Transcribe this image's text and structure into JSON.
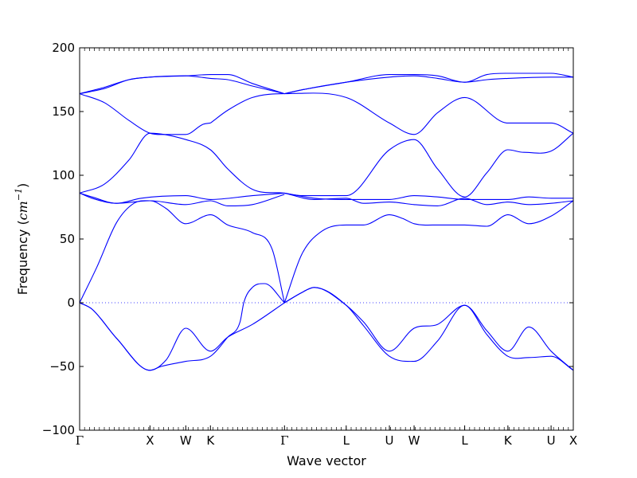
{
  "chart_data": {
    "type": "line",
    "title": "",
    "xlabel": "Wave vector",
    "ylabel": "Frequency (cm⁻¹)",
    "ylabel_parts": {
      "prefix": "Frequency (",
      "unit": "cm",
      "exp": "−1",
      "suffix": ")"
    },
    "ylim": [
      -100,
      200
    ],
    "yticks": [
      -100,
      -50,
      0,
      50,
      100,
      150,
      200
    ],
    "ytick_labels": [
      "−100",
      "−50",
      "0",
      "50",
      "100",
      "150",
      "200"
    ],
    "grid": false,
    "zero_line": "dotted",
    "line_color": "#0000ff",
    "xlim": [
      0,
      20
    ],
    "high_symmetry_points": [
      {
        "label": "Γ",
        "x": 0.0
      },
      {
        "label": "X",
        "x": 2.85
      },
      {
        "label": "W",
        "x": 4.3
      },
      {
        "label": "K",
        "x": 5.3
      },
      {
        "label": "Γ",
        "x": 8.3
      },
      {
        "label": "L",
        "x": 10.8
      },
      {
        "label": "U",
        "x": 12.55
      },
      {
        "label": "W",
        "x": 13.55
      },
      {
        "label": "L",
        "x": 15.6
      },
      {
        "label": "K",
        "x": 17.35
      },
      {
        "label": "U",
        "x": 19.1
      },
      {
        "label": "X",
        "x": 20.0
      }
    ],
    "minor_tick_step": 0.2,
    "series": [
      {
        "points": [
          [
            0,
            164
          ],
          [
            1,
            157
          ],
          [
            2,
            143
          ],
          [
            2.85,
            133
          ],
          [
            3.5,
            132
          ],
          [
            4.3,
            132
          ],
          [
            5,
            140
          ],
          [
            5.3,
            141
          ]
        ]
      },
      {
        "points": [
          [
            0,
            86
          ],
          [
            1,
            93
          ],
          [
            2,
            112
          ],
          [
            2.85,
            133
          ],
          [
            4.3,
            128
          ],
          [
            5.3,
            120
          ],
          [
            6,
            105
          ],
          [
            7,
            89
          ],
          [
            8.3,
            86
          ]
        ]
      },
      {
        "points": [
          [
            0,
            164
          ],
          [
            1,
            168
          ],
          [
            2,
            175
          ],
          [
            2.85,
            177
          ],
          [
            4.3,
            178
          ],
          [
            5.3,
            179
          ],
          [
            6,
            179
          ],
          [
            7,
            172
          ],
          [
            8.3,
            164
          ]
        ]
      },
      {
        "points": [
          [
            0,
            164
          ],
          [
            1,
            169
          ],
          [
            2,
            175
          ],
          [
            2.85,
            177
          ],
          [
            4.3,
            178
          ],
          [
            5.3,
            176
          ],
          [
            6,
            175
          ],
          [
            7,
            170
          ],
          [
            8.3,
            164
          ]
        ]
      },
      {
        "points": [
          [
            5.3,
            141
          ],
          [
            6,
            151
          ],
          [
            7,
            161
          ],
          [
            8.3,
            164
          ],
          [
            10.8,
            161
          ],
          [
            12.55,
            141
          ],
          [
            13.55,
            132
          ],
          [
            14.5,
            149
          ],
          [
            15.6,
            161
          ],
          [
            17.35,
            141
          ],
          [
            19.1,
            141
          ],
          [
            20,
            133
          ]
        ]
      },
      {
        "points": [
          [
            8.3,
            86
          ],
          [
            9,
            84
          ],
          [
            10.8,
            84
          ],
          [
            12.55,
            120
          ],
          [
            13.55,
            128
          ],
          [
            14.5,
            105
          ],
          [
            15.6,
            83
          ],
          [
            16.5,
            102
          ],
          [
            17.35,
            120
          ],
          [
            18,
            118
          ],
          [
            19.1,
            119
          ],
          [
            20,
            133
          ]
        ]
      },
      {
        "points": [
          [
            8.3,
            164
          ],
          [
            9,
            167
          ],
          [
            10.8,
            173
          ],
          [
            12.55,
            179
          ],
          [
            13.55,
            179
          ],
          [
            14.5,
            178
          ],
          [
            15.6,
            173
          ],
          [
            16.5,
            179
          ],
          [
            17.35,
            180
          ],
          [
            19.1,
            180
          ],
          [
            20,
            177
          ]
        ]
      },
      {
        "points": [
          [
            8.3,
            164
          ],
          [
            9,
            167
          ],
          [
            10.8,
            173
          ],
          [
            12.55,
            177
          ],
          [
            13.55,
            178
          ],
          [
            14.5,
            176
          ],
          [
            15.6,
            173
          ],
          [
            16.5,
            175
          ],
          [
            17.35,
            176
          ],
          [
            19.1,
            177
          ],
          [
            20,
            177
          ]
        ]
      },
      {
        "points": [
          [
            0,
            86
          ],
          [
            0.5,
            83
          ],
          [
            1.5,
            78
          ],
          [
            2.85,
            80
          ],
          [
            4.3,
            77
          ],
          [
            5.3,
            80
          ],
          [
            6,
            76
          ],
          [
            7,
            77
          ],
          [
            8.3,
            85
          ]
        ]
      },
      {
        "points": [
          [
            0,
            86
          ],
          [
            0.5,
            82
          ],
          [
            1.5,
            78
          ],
          [
            2.5,
            82
          ],
          [
            4.3,
            84
          ],
          [
            5.3,
            81
          ],
          [
            7,
            84
          ],
          [
            8.3,
            86
          ]
        ]
      },
      {
        "points": [
          [
            8.3,
            86
          ],
          [
            9.5,
            82
          ],
          [
            10.8,
            81
          ],
          [
            12.55,
            81
          ],
          [
            13.55,
            84
          ],
          [
            14.5,
            83
          ],
          [
            15.6,
            81
          ],
          [
            17.35,
            81
          ],
          [
            18.2,
            83
          ],
          [
            19.1,
            82
          ],
          [
            20,
            82
          ]
        ]
      },
      {
        "points": [
          [
            8.3,
            86
          ],
          [
            9.5,
            81
          ],
          [
            10.8,
            82
          ],
          [
            11.5,
            78
          ],
          [
            12.55,
            79
          ],
          [
            13.55,
            77
          ],
          [
            14.5,
            76
          ],
          [
            15.6,
            82
          ],
          [
            16.5,
            77
          ],
          [
            17.35,
            79
          ],
          [
            18.2,
            77
          ],
          [
            19.1,
            78
          ],
          [
            20,
            80
          ]
        ]
      },
      {
        "points": [
          [
            0,
            0
          ],
          [
            0.7,
            28
          ],
          [
            1.5,
            63
          ],
          [
            2.2,
            78
          ],
          [
            2.85,
            80
          ],
          [
            3.5,
            74
          ],
          [
            4.3,
            62
          ],
          [
            5.3,
            69
          ],
          [
            6,
            61
          ],
          [
            7,
            55
          ],
          [
            7.8,
            42
          ],
          [
            8.3,
            0
          ]
        ]
      },
      {
        "points": [
          [
            8.3,
            0
          ],
          [
            9,
            38
          ],
          [
            9.8,
            56
          ],
          [
            10.8,
            61
          ],
          [
            11.5,
            61
          ],
          [
            12.55,
            69
          ],
          [
            13.1,
            66
          ],
          [
            13.55,
            62
          ],
          [
            14.5,
            61
          ],
          [
            15.6,
            61
          ],
          [
            16.5,
            60
          ],
          [
            17.35,
            69
          ],
          [
            18.2,
            62
          ],
          [
            19.1,
            68
          ],
          [
            20,
            80
          ]
        ]
      },
      {
        "points": [
          [
            0,
            0
          ],
          [
            0.5,
            -5
          ],
          [
            1.5,
            -28
          ],
          [
            2.85,
            -53
          ],
          [
            3.3,
            -50
          ],
          [
            4.3,
            -46
          ],
          [
            5.3,
            -42
          ],
          [
            6,
            -27
          ],
          [
            6.5,
            -15
          ],
          [
            6.65,
            0
          ],
          [
            7,
            12
          ],
          [
            7.5,
            15
          ],
          [
            8.3,
            0
          ]
        ]
      },
      {
        "points": [
          [
            0,
            0
          ],
          [
            0.5,
            -5
          ],
          [
            1.5,
            -28
          ],
          [
            2.85,
            -53
          ],
          [
            3.5,
            -45
          ],
          [
            4.3,
            -20
          ],
          [
            5.3,
            -38
          ],
          [
            6,
            -27
          ],
          [
            7,
            -17
          ],
          [
            8.3,
            0
          ]
        ]
      },
      {
        "points": [
          [
            8.3,
            0
          ],
          [
            9,
            8
          ],
          [
            9.5,
            12
          ],
          [
            10.8,
            -2
          ],
          [
            11.5,
            -15
          ],
          [
            12.55,
            -38
          ],
          [
            13.55,
            -20
          ],
          [
            14.5,
            -17
          ],
          [
            15.6,
            -2
          ],
          [
            16.5,
            -22
          ],
          [
            17.35,
            -38
          ],
          [
            18.2,
            -19
          ],
          [
            19.1,
            -38
          ],
          [
            20,
            -53
          ]
        ]
      },
      {
        "points": [
          [
            8.3,
            0
          ],
          [
            9,
            8
          ],
          [
            9.5,
            12
          ],
          [
            10.8,
            -2
          ],
          [
            11.5,
            -18
          ],
          [
            12.55,
            -42
          ],
          [
            13.55,
            -46
          ],
          [
            14.5,
            -30
          ],
          [
            15.6,
            -2
          ],
          [
            16.5,
            -25
          ],
          [
            17.35,
            -42
          ],
          [
            18.2,
            -43
          ],
          [
            19.1,
            -42
          ],
          [
            20,
            -53
          ]
        ]
      }
    ]
  }
}
